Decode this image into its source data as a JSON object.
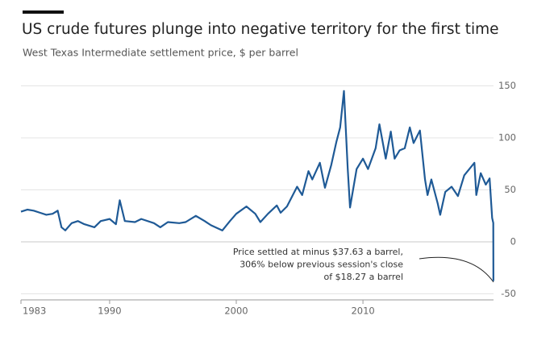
{
  "chart_data": {
    "type": "line",
    "title": "US crude futures plunge into negative territory for the first time",
    "subtitle": "West Texas Intermediate settlement price, $ per barrel",
    "annotation": [
      "Price settled at minus $37.63 a barrel,",
      "306% below previous session's close",
      "of $18.27 a barrel"
    ],
    "color": "#1f5a96",
    "grid": true,
    "x": [
      1983.0,
      1983.5,
      1984.0,
      1984.5,
      1985.0,
      1985.5,
      1985.9,
      1986.2,
      1986.5,
      1987.0,
      1987.5,
      1988.0,
      1988.8,
      1989.3,
      1990.0,
      1990.5,
      1990.8,
      1991.2,
      1992.0,
      1992.5,
      1993.5,
      1994.0,
      1994.6,
      1995.5,
      1996.0,
      1996.8,
      1997.5,
      1998.0,
      1998.9,
      1999.5,
      2000.0,
      2000.8,
      2001.5,
      2001.9,
      2002.5,
      2003.2,
      2003.5,
      2004.0,
      2004.8,
      2005.2,
      2005.7,
      2006.0,
      2006.6,
      2007.0,
      2007.5,
      2007.9,
      2008.2,
      2008.5,
      2008.8,
      2008.98,
      2009.5,
      2010.0,
      2010.4,
      2011.0,
      2011.3,
      2011.8,
      2012.2,
      2012.5,
      2012.9,
      2013.3,
      2013.7,
      2014.0,
      2014.5,
      2014.9,
      2015.1,
      2015.4,
      2015.9,
      2016.1,
      2016.5,
      2017.0,
      2017.5,
      2018.0,
      2018.8,
      2018.95,
      2019.3,
      2019.7,
      2020.0,
      2020.2,
      2020.29,
      2020.3
    ],
    "values": [
      29,
      31,
      30,
      28,
      26,
      27,
      30,
      14,
      11,
      18,
      20,
      17,
      14,
      20,
      22,
      17,
      40,
      20,
      19,
      22,
      18,
      14,
      19,
      18,
      19,
      25,
      20,
      16,
      11,
      20,
      27,
      34,
      27,
      19,
      27,
      35,
      28,
      34,
      53,
      45,
      68,
      60,
      76,
      52,
      74,
      96,
      110,
      145,
      70,
      33,
      70,
      80,
      70,
      90,
      113,
      80,
      106,
      80,
      88,
      90,
      110,
      95,
      107,
      60,
      45,
      60,
      37,
      26,
      48,
      53,
      44,
      64,
      76,
      45,
      66,
      55,
      61,
      23,
      18.27,
      -37.63
    ],
    "xlim": [
      1983,
      2020.5
    ],
    "xticks": [
      1983,
      1990,
      2000,
      2010
    ],
    "ylim": [
      -55,
      155
    ],
    "yticks": [
      -50,
      0,
      50,
      100,
      150
    ]
  }
}
